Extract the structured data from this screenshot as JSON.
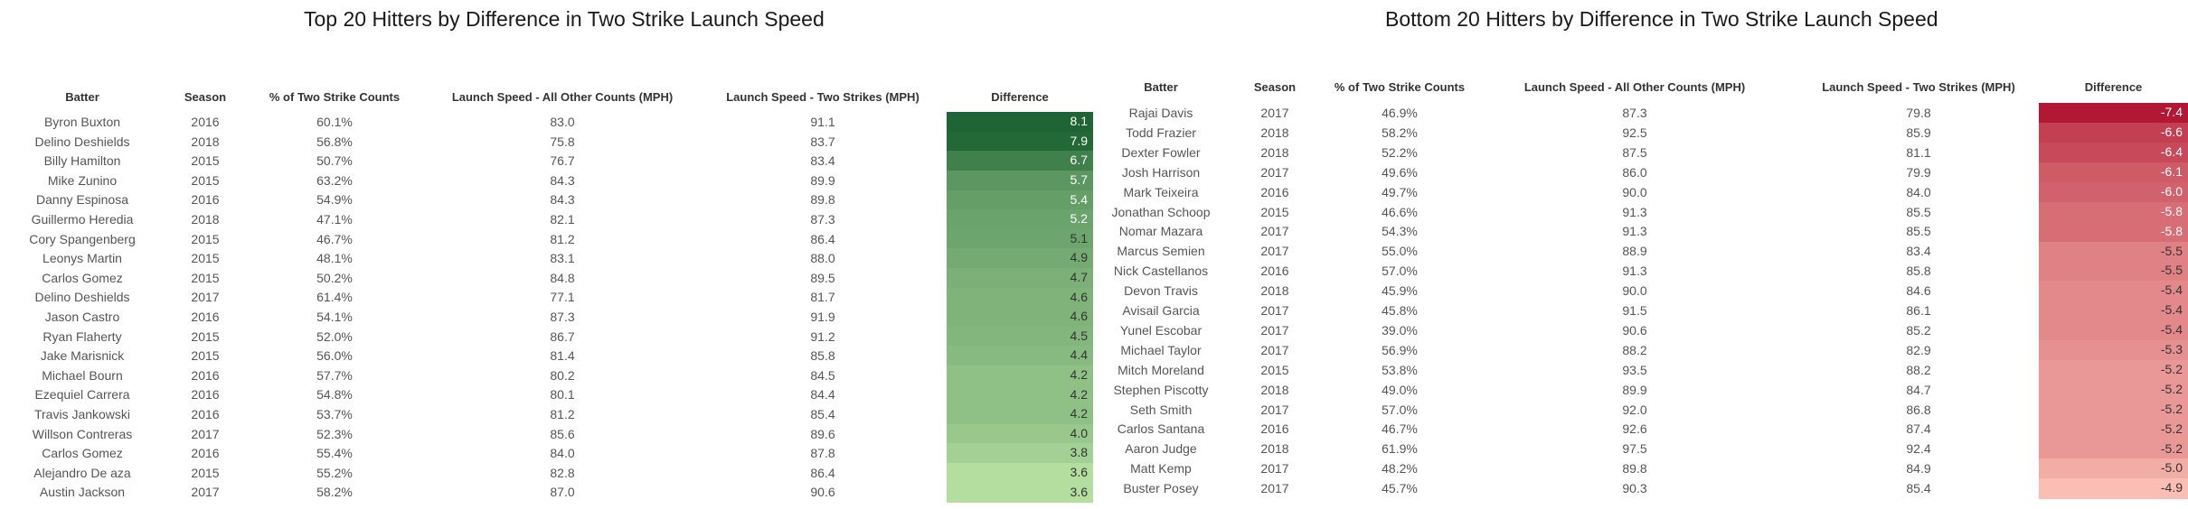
{
  "chart_data": [
    {
      "type": "table",
      "title": "Top 20 Hitters by Difference in Two Strike Launch Speed",
      "columns": [
        "Batter",
        "Season",
        "% of Two Strike Counts",
        "Launch Speed - All Other Counts (MPH)",
        "Launch Speed - Two Strikes (MPH)",
        "Difference"
      ],
      "color_scale": "green",
      "rows": [
        [
          "Byron Buxton",
          "2016",
          "60.1%",
          "83.0",
          "91.1",
          "8.1"
        ],
        [
          "Delino Deshields",
          "2018",
          "56.8%",
          "75.8",
          "83.7",
          "7.9"
        ],
        [
          "Billy Hamilton",
          "2015",
          "50.7%",
          "76.7",
          "83.4",
          "6.7"
        ],
        [
          "Mike Zunino",
          "2015",
          "63.2%",
          "84.3",
          "89.9",
          "5.7"
        ],
        [
          "Danny Espinosa",
          "2016",
          "54.9%",
          "84.3",
          "89.8",
          "5.4"
        ],
        [
          "Guillermo Heredia",
          "2018",
          "47.1%",
          "82.1",
          "87.3",
          "5.2"
        ],
        [
          "Cory Spangenberg",
          "2015",
          "46.7%",
          "81.2",
          "86.4",
          "5.1"
        ],
        [
          "Leonys Martin",
          "2015",
          "48.1%",
          "83.1",
          "88.0",
          "4.9"
        ],
        [
          "Carlos Gomez",
          "2015",
          "50.2%",
          "84.8",
          "89.5",
          "4.7"
        ],
        [
          "Delino Deshields",
          "2017",
          "61.4%",
          "77.1",
          "81.7",
          "4.6"
        ],
        [
          "Jason Castro",
          "2016",
          "54.1%",
          "87.3",
          "91.9",
          "4.6"
        ],
        [
          "Ryan Flaherty",
          "2015",
          "52.0%",
          "86.7",
          "91.2",
          "4.5"
        ],
        [
          "Jake Marisnick",
          "2015",
          "56.0%",
          "81.4",
          "85.8",
          "4.4"
        ],
        [
          "Michael Bourn",
          "2016",
          "57.7%",
          "80.2",
          "84.5",
          "4.2"
        ],
        [
          "Ezequiel Carrera",
          "2016",
          "54.8%",
          "80.1",
          "84.4",
          "4.2"
        ],
        [
          "Travis Jankowski",
          "2016",
          "53.7%",
          "81.2",
          "85.4",
          "4.2"
        ],
        [
          "Willson Contreras",
          "2017",
          "52.3%",
          "85.6",
          "89.6",
          "4.0"
        ],
        [
          "Carlos Gomez",
          "2016",
          "55.4%",
          "84.0",
          "87.8",
          "3.8"
        ],
        [
          "Alejandro De aza",
          "2015",
          "55.2%",
          "82.8",
          "86.4",
          "3.6"
        ],
        [
          "Austin Jackson",
          "2017",
          "58.2%",
          "87.0",
          "90.6",
          "3.6"
        ]
      ]
    },
    {
      "type": "table",
      "title": "Bottom 20 Hitters by Difference in Two Strike Launch Speed",
      "columns": [
        "Batter",
        "Season",
        "% of Two Strike Counts",
        "Launch Speed - All Other Counts (MPH)",
        "Launch Speed - Two Strikes (MPH)",
        "Difference"
      ],
      "color_scale": "red",
      "rows": [
        [
          "Rajai Davis",
          "2017",
          "46.9%",
          "87.3",
          "79.8",
          "-7.4"
        ],
        [
          "Todd Frazier",
          "2018",
          "58.2%",
          "92.5",
          "85.9",
          "-6.6"
        ],
        [
          "Dexter Fowler",
          "2018",
          "52.2%",
          "87.5",
          "81.1",
          "-6.4"
        ],
        [
          "Josh Harrison",
          "2017",
          "49.6%",
          "86.0",
          "79.9",
          "-6.1"
        ],
        [
          "Mark Teixeira",
          "2016",
          "49.7%",
          "90.0",
          "84.0",
          "-6.0"
        ],
        [
          "Jonathan Schoop",
          "2015",
          "46.6%",
          "91.3",
          "85.5",
          "-5.8"
        ],
        [
          "Nomar Mazara",
          "2017",
          "54.3%",
          "91.3",
          "85.5",
          "-5.8"
        ],
        [
          "Marcus Semien",
          "2017",
          "55.0%",
          "88.9",
          "83.4",
          "-5.5"
        ],
        [
          "Nick Castellanos",
          "2016",
          "57.0%",
          "91.3",
          "85.8",
          "-5.5"
        ],
        [
          "Devon Travis",
          "2018",
          "45.9%",
          "90.0",
          "84.6",
          "-5.4"
        ],
        [
          "Avisail Garcia",
          "2017",
          "45.8%",
          "91.5",
          "86.1",
          "-5.4"
        ],
        [
          "Yunel Escobar",
          "2017",
          "39.0%",
          "90.6",
          "85.2",
          "-5.4"
        ],
        [
          "Michael Taylor",
          "2017",
          "56.9%",
          "88.2",
          "82.9",
          "-5.3"
        ],
        [
          "Mitch Moreland",
          "2015",
          "53.8%",
          "93.5",
          "88.2",
          "-5.2"
        ],
        [
          "Stephen Piscotty",
          "2018",
          "49.0%",
          "89.9",
          "84.7",
          "-5.2"
        ],
        [
          "Seth Smith",
          "2017",
          "57.0%",
          "92.0",
          "86.8",
          "-5.2"
        ],
        [
          "Carlos Santana",
          "2016",
          "46.7%",
          "92.6",
          "87.4",
          "-5.2"
        ],
        [
          "Aaron Judge",
          "2018",
          "61.9%",
          "97.5",
          "92.4",
          "-5.2"
        ],
        [
          "Matt Kemp",
          "2017",
          "48.2%",
          "89.8",
          "84.9",
          "-5.0"
        ],
        [
          "Buster Posey",
          "2017",
          "45.7%",
          "90.3",
          "85.4",
          "-4.9"
        ]
      ]
    }
  ]
}
